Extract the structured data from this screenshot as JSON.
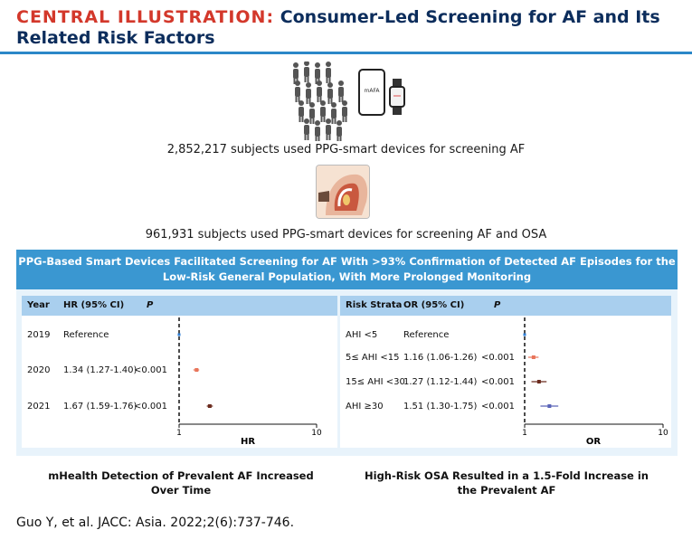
{
  "header": {
    "title_accent": "CENTRAL ILLUSTRATION:",
    "title_main": "Consumer-Led Screening for AF and Its Related Risk Factors"
  },
  "top": {
    "phone_app_label": "mAFA",
    "stat1": "2,852,217 subjects used PPG-smart devices for screening AF",
    "stat2": "961,931 subjects used PPG-smart devices for screening AF and OSA"
  },
  "banner": {
    "text": "PPG-Based Smart Devices Facilitated Screening for AF With >93% Confirmation of Detected AF Episodes for the Low-Risk General Population, With More Prolonged Monitoring"
  },
  "left_panel": {
    "headers": {
      "col1": "Year",
      "col2": "HR (95% CI)",
      "col3": "P"
    },
    "rows": [
      {
        "label": "2019",
        "est": "Reference",
        "p": "",
        "value": 1.0,
        "lo": 1.0,
        "hi": 1.0,
        "ref": true
      },
      {
        "label": "2020",
        "est": "1.34 (1.27-1.40)",
        "p": "<0.001",
        "value": 1.34,
        "lo": 1.27,
        "hi": 1.4,
        "ref": false
      },
      {
        "label": "2021",
        "est": "1.67 (1.59-1.76)",
        "p": "<0.001",
        "value": 1.67,
        "lo": 1.59,
        "hi": 1.76,
        "ref": false
      }
    ],
    "axis": {
      "ticks": [
        1,
        10
      ],
      "tick_labels": [
        "1",
        "10"
      ],
      "label": "HR"
    },
    "caption": "mHealth Detection of Prevalent AF Increased Over Time"
  },
  "right_panel": {
    "headers": {
      "col1": "Risk Strata",
      "col2": "OR (95% CI)",
      "col3": "P"
    },
    "rows": [
      {
        "label": "AHI <5",
        "est": "Reference",
        "p": "",
        "value": 1.0,
        "lo": 1.0,
        "hi": 1.0,
        "ref": true
      },
      {
        "label": "5≤ AHI <15",
        "est": "1.16 (1.06-1.26)",
        "p": "<0.001",
        "value": 1.16,
        "lo": 1.06,
        "hi": 1.26,
        "ref": false
      },
      {
        "label": "15≤ AHI <30",
        "est": "1.27 (1.12-1.44)",
        "p": "<0.001",
        "value": 1.27,
        "lo": 1.12,
        "hi": 1.44,
        "ref": false
      },
      {
        "label": "AHI ≥30",
        "est": "1.51 (1.30-1.75)",
        "p": "<0.001",
        "value": 1.51,
        "lo": 1.3,
        "hi": 1.75,
        "ref": false
      }
    ],
    "axis": {
      "ticks": [
        1,
        10
      ],
      "tick_labels": [
        "1",
        "10"
      ],
      "label": "OR"
    },
    "caption": "High-Risk OSA Resulted in a 1.5-Fold Increase in the Prevalent AF"
  },
  "citation": "Guo Y, et al. JACC: Asia. 2022;2(6):737-746.",
  "colors": {
    "title_accent": "#d3382b",
    "title_main": "#0c2d5c",
    "banner": "#3a97d1",
    "header_row": "#a9cfee",
    "point_ref": "#2f7fd6",
    "point_low": "#e8745a",
    "point_high": "#6b2b1e",
    "point_right_high": "#5a64b8"
  }
}
